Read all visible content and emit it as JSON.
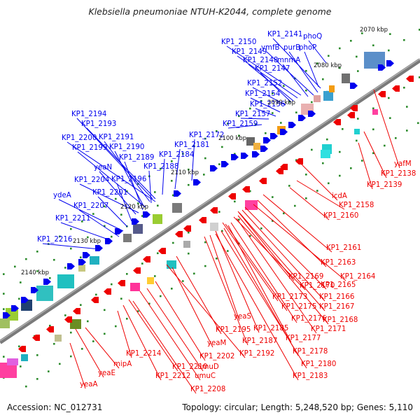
{
  "title": "Klebsiella pneumoniae NTUH-K2044, complete genome",
  "accession": "Accession: NC_012731",
  "stats": "Topology: circular; Length: 5,248,520 bp; Genes: 5,110",
  "colors": {
    "forward_genes": "#0000ee",
    "reverse_genes": "#ee0000",
    "backbone": "#808080",
    "tick_dots": "#2a8a2a"
  },
  "scale_labels": [
    "2070 kbp",
    "2080 kbp",
    "2090 kbp",
    "2100 kbp",
    "2110 kbp",
    "2120 kbp",
    "2130 kbp",
    "2140 kbp"
  ],
  "forward_labels": [
    "phoQ",
    "KP1_2141",
    "KP1_2150",
    "ymfB",
    "purB",
    "phoP",
    "KP1_2149",
    "KP1_2148",
    "mnmA",
    "KP1_2147",
    "KP1_2152",
    "KP1_2154",
    "KP1_2156",
    "KP1_2157",
    "KP1_2194",
    "KP1_2159",
    "KP1_2193",
    "KP1_2172",
    "KP1_2200",
    "KP1_2191",
    "KP1_2181",
    "KP1_2199",
    "KP1_2190",
    "KP1_2184",
    "KP1_2189",
    "yeaN",
    "KP1_2188",
    "KP1_2204",
    "KP1_2196",
    "ydeA",
    "KP1_2201",
    "KP1_2207",
    "KP1_2211",
    "KP1_2216"
  ],
  "reverse_labels": [
    "yafM",
    "KP1_2138",
    "KP1_2139",
    "icdA",
    "KP1_2158",
    "KP1_2160",
    "KP1_2161",
    "KP1_2163",
    "KP1_2164",
    "KP1_2169",
    "KP1_2165",
    "KP1_2170",
    "KP1_2166",
    "KP1_2173",
    "KP1_2167",
    "KP1_2175",
    "yeaS",
    "KP1_2168",
    "KP1_2176",
    "KP1_2171",
    "KP1_2195",
    "KP1_2185",
    "KP1_2177",
    "yeaM",
    "KP1_2187",
    "KP1_2178",
    "KP1_2192",
    "KP1_2202",
    "KP1_2180",
    "KP1_2214",
    "mipA",
    "KP1_2210",
    "umuD",
    "yeaE",
    "KP1_2183",
    "KP1_2212",
    "umuC",
    "yeaA",
    "KP1_2208"
  ]
}
